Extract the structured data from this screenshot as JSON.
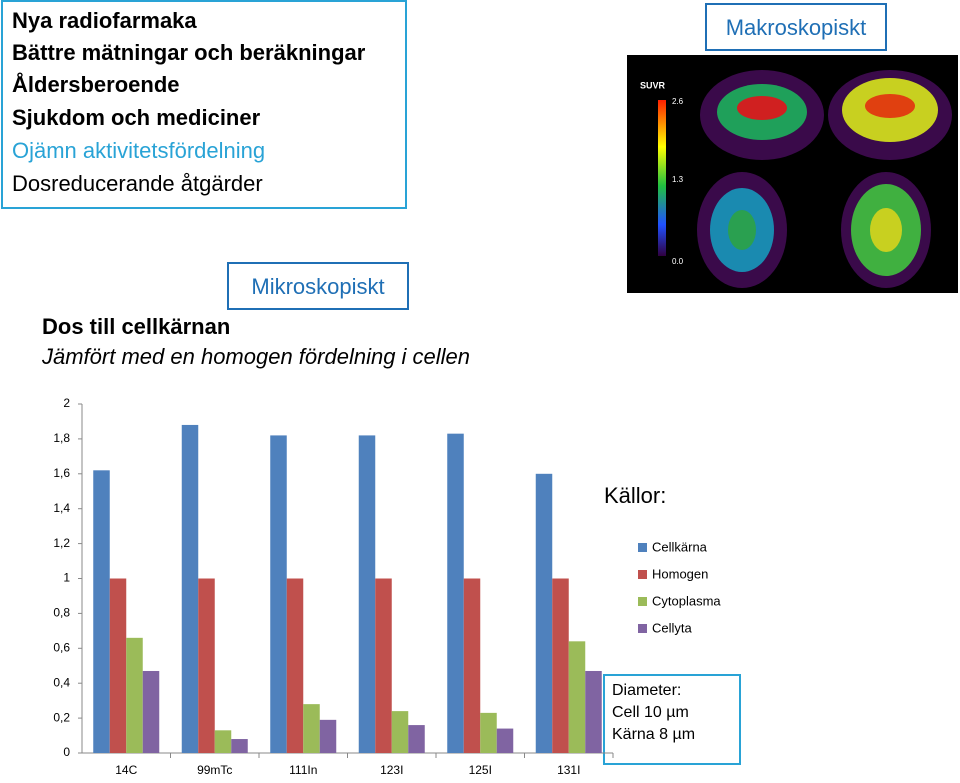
{
  "slide": {
    "bullets": [
      "Nya radiofarmaka",
      "Bättre mätningar och beräkningar",
      "Åldersberoende",
      "Sjukdom och mediciner",
      "Ojämn aktivitetsfördelning",
      "Dosreducerande åtgärder"
    ],
    "macro_label": "Makroskopiskt",
    "micro_label": "Mikroskopiskt",
    "heading": "Dos till cellkärnan",
    "subheading": "Jämfört med en homogen fördelning i cellen",
    "sources_label": "Källor:",
    "note_lines": [
      "Diameter:",
      "Cell 10 µm",
      "Kärna 8 µm"
    ],
    "scan_labels": [
      "SUVR",
      "2.6",
      "1.3",
      "0.0"
    ]
  },
  "chart_data": {
    "type": "bar",
    "categories": [
      "14C",
      "99mTc",
      "111In",
      "123I",
      "125I",
      "131I"
    ],
    "series": [
      {
        "name": "Cellkärna",
        "color": "#4f81bd",
        "values": [
          1.62,
          1.88,
          1.82,
          1.82,
          1.83,
          1.6
        ]
      },
      {
        "name": "Homogen",
        "color": "#c0504d",
        "values": [
          1,
          1,
          1,
          1,
          1,
          1
        ]
      },
      {
        "name": "Cytoplasma",
        "color": "#9bbb59",
        "values": [
          0.66,
          0.13,
          0.28,
          0.24,
          0.23,
          0.64
        ]
      },
      {
        "name": "Cellyta",
        "color": "#8064a2",
        "values": [
          0.47,
          0.08,
          0.19,
          0.16,
          0.14,
          0.47
        ]
      }
    ],
    "ylim": [
      0,
      2
    ],
    "yticks": [
      0,
      {
        "value": 0.2,
        "label": "0,2"
      },
      {
        "value": 0.4,
        "label": "0,4"
      },
      {
        "value": 0.6,
        "label": "0,6"
      },
      {
        "value": 0.8,
        "label": "0,8"
      },
      1,
      {
        "value": 1.2,
        "label": "1,2"
      },
      {
        "value": 1.4,
        "label": "1,4"
      },
      {
        "value": 1.6,
        "label": "1,6"
      },
      {
        "value": 1.8,
        "label": "1,8"
      },
      2
    ],
    "grid": false
  }
}
